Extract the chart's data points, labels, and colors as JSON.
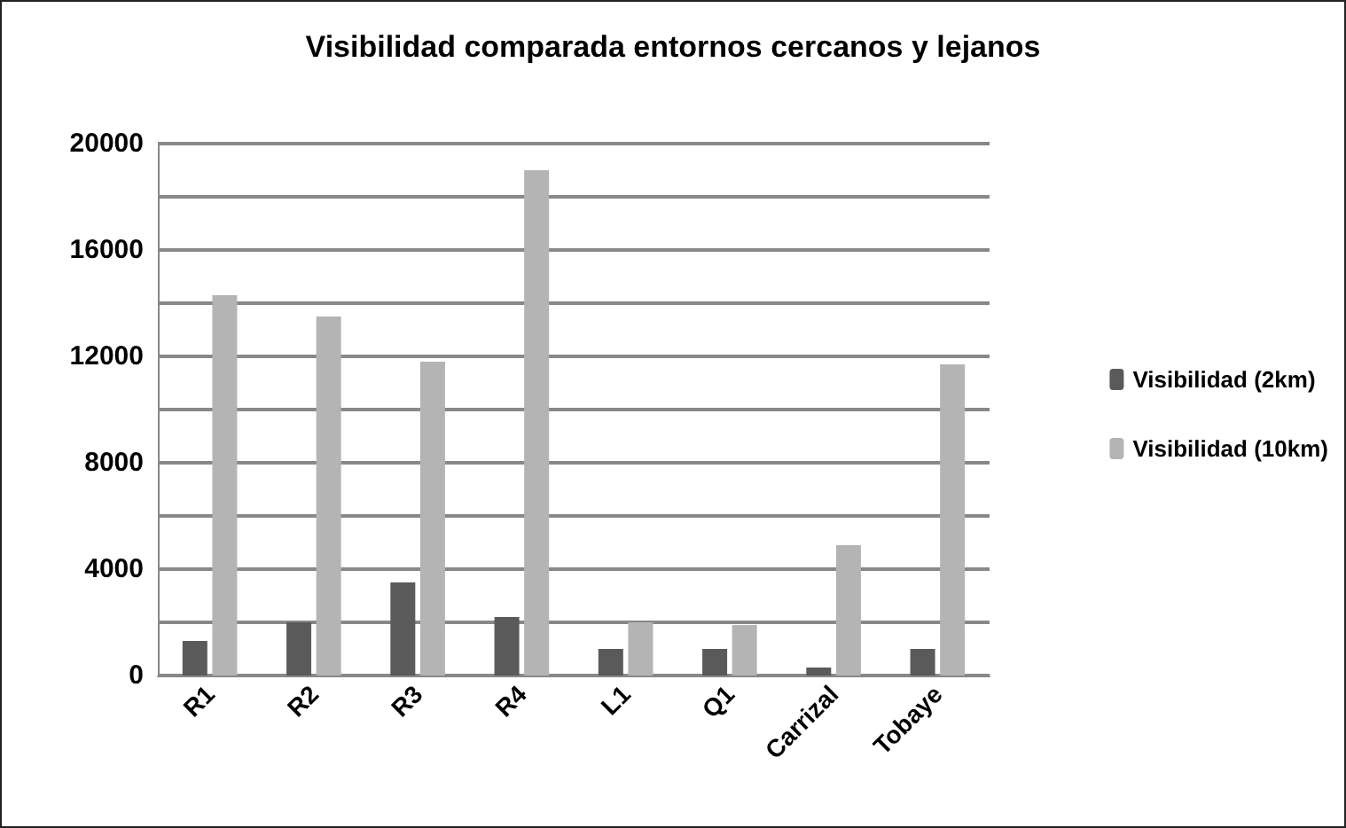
{
  "chart_data": {
    "type": "bar",
    "title": "Visibilidad comparada entornos cercanos y lejanos",
    "categories": [
      "R1",
      "R2",
      "R3",
      "R4",
      "L1",
      "Q1",
      "Carrizal",
      "Tobaye"
    ],
    "series": [
      {
        "name": "Visibilidad (2km)",
        "color": "#5a5a5a",
        "values": [
          1300,
          2000,
          3500,
          2200,
          1000,
          1000,
          300,
          1000
        ]
      },
      {
        "name": "Visibilidad (10km)",
        "color": "#b4b4b4",
        "values": [
          14300,
          13500,
          11800,
          19000,
          2000,
          1900,
          4900,
          11700
        ]
      }
    ],
    "ylim": [
      0,
      20000
    ],
    "yticks": [
      0,
      {
        "value": 2000,
        "label": null
      },
      4000,
      {
        "value": 6000,
        "label": null
      },
      8000,
      {
        "value": 10000,
        "label": null
      },
      12000,
      {
        "value": 14000,
        "label": null
      },
      16000,
      {
        "value": 18000,
        "label": null
      },
      20000
    ],
    "grid": "y",
    "legend": "right"
  }
}
